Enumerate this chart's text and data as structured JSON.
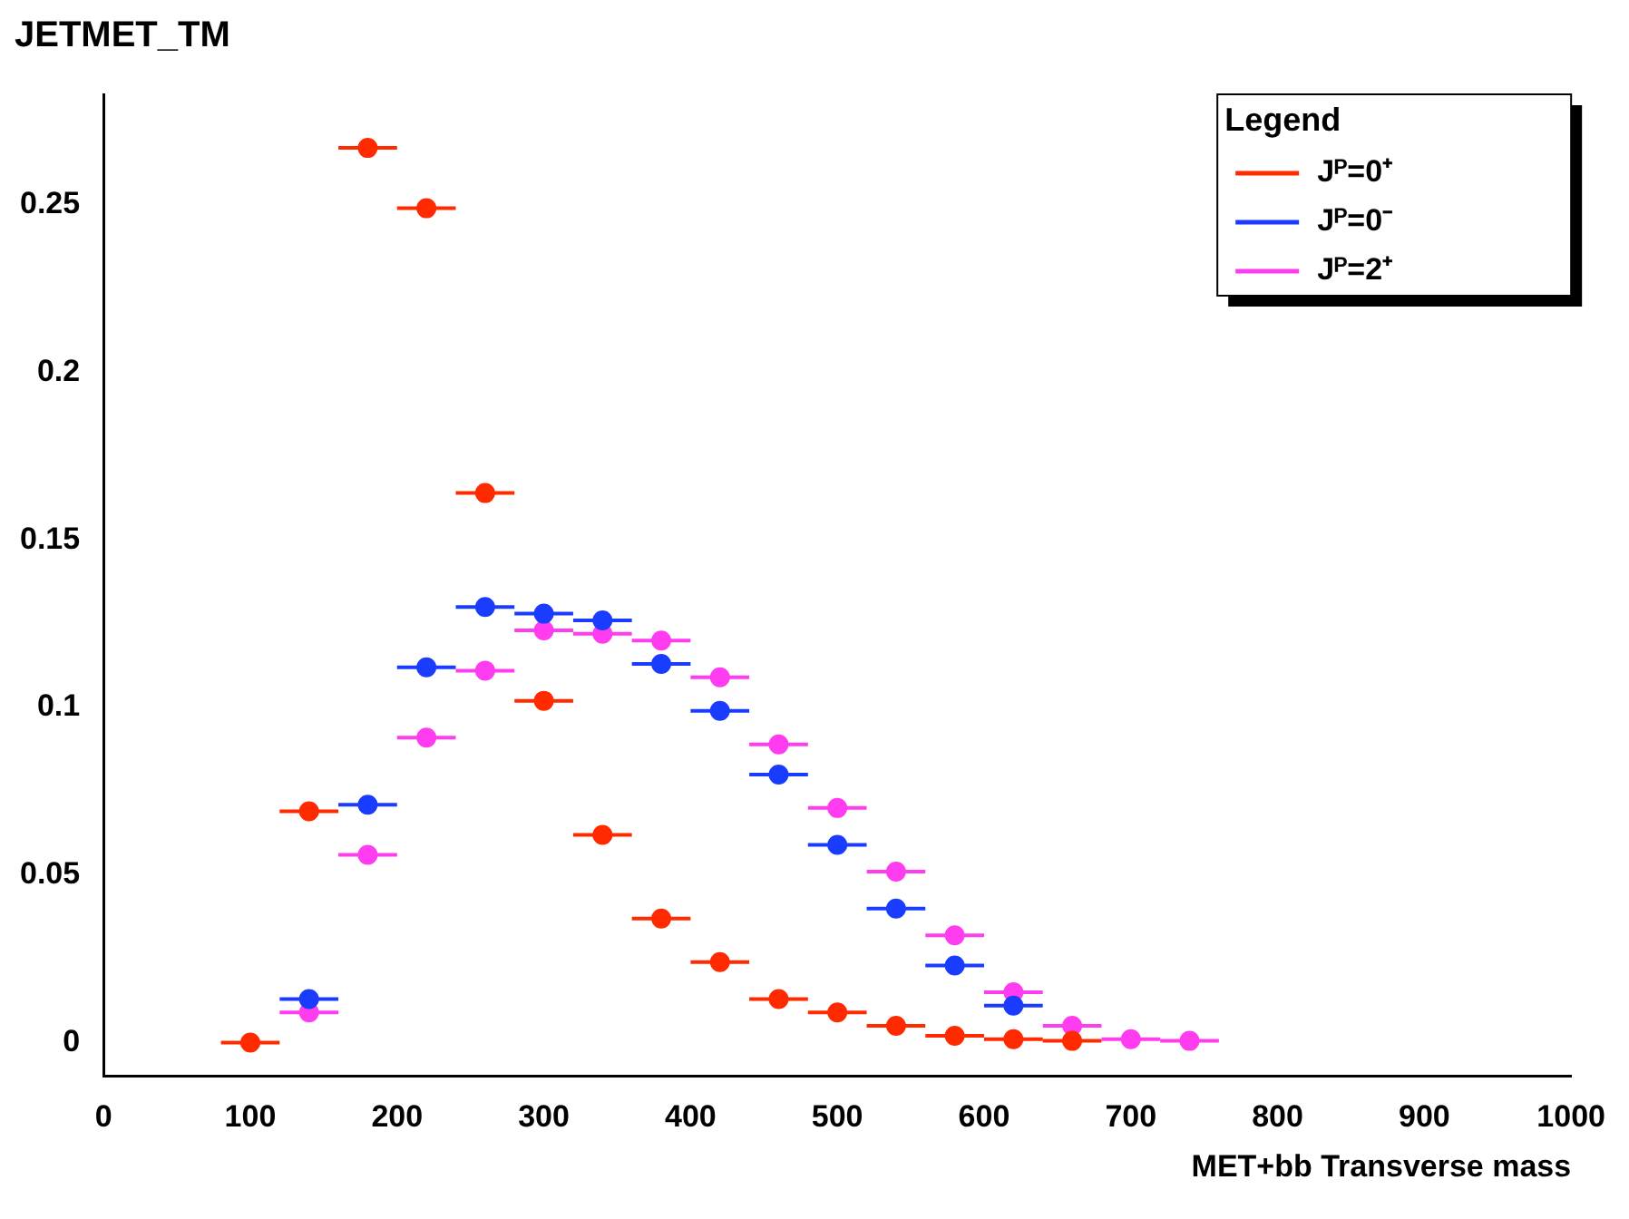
{
  "chart_data": {
    "type": "scatter",
    "title": "JETMET_TM",
    "xlabel": "MET+bb Transverse mass",
    "legend_title": "Legend",
    "legend": "top right",
    "marker": "circle",
    "grid": false,
    "xlim": [
      0,
      1000
    ],
    "xticks": [
      0,
      100,
      200,
      300,
      400,
      500,
      600,
      700,
      800,
      900,
      1000
    ],
    "ylim": [
      -0.01,
      0.283
    ],
    "yticks": [
      0,
      0.05,
      0.1,
      0.15,
      0.2,
      0.25
    ],
    "series": [
      {
        "name": "Jᴾ=0⁺",
        "color": "#ff2a00",
        "x": [
          100,
          140,
          180,
          220,
          260,
          300,
          340,
          380,
          420,
          460,
          500,
          540,
          580,
          620,
          660
        ],
        "values": [
          0.0,
          0.069,
          0.267,
          0.249,
          0.164,
          0.102,
          0.062,
          0.037,
          0.024,
          0.013,
          0.009,
          0.005,
          0.002,
          0.001,
          0.0005
        ],
        "xerrors": [
          20,
          20,
          20,
          20,
          20,
          20,
          20,
          20,
          20,
          20,
          20,
          20,
          20,
          20,
          20
        ]
      },
      {
        "name": "Jᴾ=0⁻",
        "color": "#1a3cff",
        "x": [
          140,
          180,
          220,
          260,
          300,
          340,
          380,
          420,
          460,
          500,
          540,
          580,
          620
        ],
        "values": [
          0.013,
          0.071,
          0.112,
          0.13,
          0.128,
          0.126,
          0.113,
          0.099,
          0.08,
          0.059,
          0.04,
          0.023,
          0.011
        ],
        "xerrors": [
          20,
          20,
          20,
          20,
          20,
          20,
          20,
          20,
          20,
          20,
          20,
          20,
          20
        ]
      },
      {
        "name": "Jᴾ=2⁺",
        "color": "#ff3cf0",
        "x": [
          140,
          180,
          220,
          260,
          300,
          340,
          380,
          420,
          460,
          500,
          540,
          580,
          620,
          660,
          700,
          740
        ],
        "values": [
          0.009,
          0.056,
          0.091,
          0.111,
          0.123,
          0.122,
          0.12,
          0.109,
          0.089,
          0.07,
          0.051,
          0.032,
          0.015,
          0.005,
          0.001,
          0.0005
        ],
        "xerrors": [
          20,
          20,
          20,
          20,
          20,
          20,
          20,
          20,
          20,
          20,
          20,
          20,
          20,
          20,
          20,
          20
        ]
      }
    ]
  }
}
